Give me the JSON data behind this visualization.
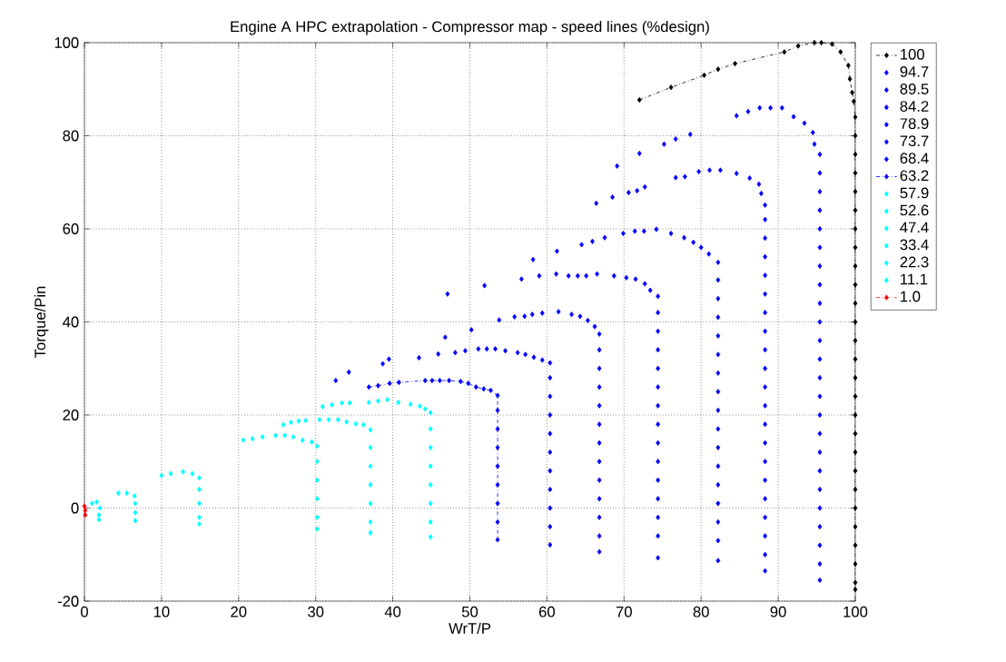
{
  "chart_data": {
    "type": "scatter",
    "title": "Engine A HPC extrapolation - Compressor map - speed lines (%design)",
    "xlabel": "WrT/P",
    "ylabel": "Torque/Pin",
    "xlim": [
      0,
      100
    ],
    "ylim": [
      -20,
      100
    ],
    "xticks": [
      0,
      10,
      20,
      30,
      40,
      50,
      60,
      70,
      80,
      90,
      100
    ],
    "yticks": [
      -20,
      0,
      20,
      40,
      60,
      80,
      100
    ],
    "grid": true,
    "legend": "right",
    "marker": "diamond",
    "series": [
      {
        "name": "100",
        "type": "line",
        "line_style": "dashdot",
        "color": "#000000",
        "x": [
          72.0,
          76.1,
          80.4,
          82.2,
          84.4,
          90.8,
          92.6,
          94.7,
          95.6,
          97.0,
          98.1,
          99.1,
          99.3,
          99.6,
          99.8,
          100,
          100,
          100,
          100,
          100,
          100,
          100,
          100,
          100,
          100,
          100,
          100,
          100,
          100,
          100,
          100,
          100,
          100,
          100,
          100,
          100,
          100,
          100,
          100,
          100,
          100,
          100
        ],
        "values": [
          87.7,
          90.4,
          93.0,
          94.3,
          95.5,
          98.0,
          99.3,
          100,
          100,
          99.7,
          98.0,
          95.1,
          92.2,
          89.3,
          87.4,
          84,
          80,
          76,
          72,
          68,
          64,
          60,
          56,
          52,
          48,
          44,
          40,
          36,
          32,
          28,
          24,
          20,
          16,
          12,
          8,
          4,
          0,
          -4,
          -8,
          -12,
          -16,
          -17.5
        ]
      },
      {
        "name": "94.7",
        "color": "#0000ff",
        "x": [
          69.1,
          72.0,
          75.2,
          76.7,
          78.6,
          84.6,
          86.1,
          87.6,
          89.0,
          90.5,
          92.0,
          93.4,
          94.5,
          94.7,
          95.4,
          95.4,
          95.4,
          95.4,
          95.4,
          95.4,
          95.4,
          95.4,
          95.4,
          95.4,
          95.4,
          95.4,
          95.4,
          95.4,
          95.4,
          95.4,
          95.4,
          95.4,
          95.4,
          95.4,
          95.4,
          95.4,
          95.4,
          95.4
        ],
        "values": [
          73.5,
          76.2,
          78.2,
          79.3,
          80.3,
          84.3,
          85.2,
          86.0,
          86.0,
          86.0,
          84.1,
          82.7,
          80.7,
          78.2,
          76,
          72,
          68,
          64,
          60,
          56,
          52,
          48,
          44,
          40,
          36,
          32,
          28,
          24,
          20,
          16,
          12,
          8,
          4,
          0,
          -4,
          -8,
          -12,
          -15.5
        ]
      },
      {
        "name": "89.5",
        "color": "#0000ff",
        "x": [
          66.4,
          68.5,
          70.6,
          71.7,
          72.7,
          76.7,
          77.9,
          79.7,
          81.1,
          82.5,
          84.6,
          86.3,
          87.5,
          87.8,
          88.3,
          88.3,
          88.3,
          88.3,
          88.3,
          88.3,
          88.3,
          88.3,
          88.3,
          88.3,
          88.3,
          88.3,
          88.3,
          88.3,
          88.3,
          88.3,
          88.3,
          88.3,
          88.3,
          88.3,
          88.3
        ],
        "values": [
          65.5,
          66.8,
          67.8,
          68.2,
          69.0,
          71.0,
          71.2,
          72.3,
          72.6,
          72.6,
          71.9,
          70.9,
          69.6,
          67.6,
          65.1,
          62,
          58,
          54,
          50,
          46,
          42,
          38,
          34,
          30,
          26,
          22,
          18,
          14,
          10,
          6,
          2,
          -2,
          -6,
          -10,
          -13.5
        ]
      },
      {
        "name": "84.2",
        "color": "#0000ff",
        "x": [
          58.2,
          61.3,
          64.5,
          65.9,
          67.5,
          69.9,
          71.4,
          72.6,
          74.2,
          76.1,
          77.8,
          79.0,
          80.0,
          81.0,
          82.2,
          82.2,
          82.2,
          82.2,
          82.2,
          82.2,
          82.2,
          82.2,
          82.2,
          82.2,
          82.2,
          82.2,
          82.2,
          82.2,
          82.2,
          82.2,
          82.2
        ],
        "values": [
          53.4,
          55.2,
          56.6,
          57.3,
          58.1,
          59.0,
          59.5,
          59.5,
          59.9,
          59.0,
          58.1,
          57.1,
          56.0,
          54.6,
          52.8,
          49,
          45,
          41,
          37,
          33,
          29,
          25,
          21,
          17,
          13,
          9,
          5,
          1,
          -3,
          -7,
          -11.3
        ]
      },
      {
        "name": "78.9",
        "color": "#0000ff",
        "x": [
          47.1,
          51.9,
          56.7,
          59.0,
          61.2,
          62.8,
          64.0,
          65.1,
          66.5,
          68.7,
          70.3,
          71.5,
          72.7,
          73.4,
          74.4,
          74.4,
          74.4,
          74.4,
          74.4,
          74.4,
          74.4,
          74.4,
          74.4,
          74.4,
          74.4,
          74.4,
          74.4,
          74.4,
          74.4
        ],
        "values": [
          46.0,
          47.8,
          49.2,
          49.9,
          50.3,
          49.9,
          49.9,
          49.9,
          50.3,
          49.9,
          49.5,
          49.2,
          48.2,
          46.8,
          45.5,
          42,
          38,
          34,
          30,
          26,
          22,
          18,
          14,
          10,
          6,
          2,
          -2,
          -6,
          -10.7
        ]
      },
      {
        "name": "73.7",
        "color": "#0000ff",
        "x": [
          46.8,
          50.2,
          53.8,
          55.8,
          57.1,
          58.1,
          59.4,
          61.5,
          63.2,
          64.3,
          65.3,
          66.2,
          66.8,
          66.8,
          66.8,
          66.8,
          66.8,
          66.8,
          66.8,
          66.8,
          66.8,
          66.8,
          66.8,
          66.8,
          66.8
        ],
        "values": [
          36.7,
          38.3,
          40.4,
          41.1,
          41.2,
          41.6,
          41.9,
          42.2,
          41.6,
          41.2,
          40.3,
          39.0,
          37.4,
          34,
          30,
          26,
          22,
          18,
          14,
          10,
          6,
          2,
          -2,
          -6,
          -9.4
        ]
      },
      {
        "name": "68.4",
        "color": "#0000ff",
        "x": [
          32.6,
          34.3,
          38.7,
          39.5,
          43.4,
          45.9,
          48.1,
          49.4,
          51.1,
          52.2,
          53.3,
          54.6,
          56.2,
          57.2,
          58.3,
          59.4,
          60.4,
          60.4,
          60.4,
          60.4,
          60.4,
          60.4,
          60.4,
          60.4,
          60.4,
          60.4,
          60.4
        ],
        "values": [
          27.4,
          29.2,
          31.0,
          32.0,
          32.3,
          33.1,
          33.4,
          33.8,
          34.2,
          34.2,
          34.2,
          33.8,
          33.4,
          33.0,
          32.4,
          31.8,
          31.2,
          28,
          24,
          20,
          16,
          12,
          8,
          4,
          0,
          -4,
          -7.9
        ]
      },
      {
        "name": "63.2",
        "type": "line",
        "line_style": "dashdot",
        "color": "#0000ff",
        "x": [
          36.9,
          38.1,
          39.6,
          40.8,
          44.2,
          45.1,
          46.1,
          47.3,
          48.8,
          49.8,
          50.8,
          51.8,
          52.7,
          53.6,
          53.6,
          53.6,
          53.6,
          53.6,
          53.6,
          53.6,
          53.6,
          53.6
        ],
        "values": [
          26.0,
          26.3,
          26.8,
          27.0,
          27.4,
          27.4,
          27.4,
          27.4,
          27.2,
          26.8,
          26.0,
          25.6,
          25.3,
          24.2,
          21,
          17,
          13,
          9,
          5,
          1,
          -3,
          -6.8
        ]
      },
      {
        "name": "57.9",
        "color": "#00ffff",
        "x": [
          30.9,
          32.1,
          33.4,
          34.4,
          36.9,
          38.1,
          39.3,
          40.7,
          42.3,
          43.5,
          44.2,
          44.9,
          44.9,
          44.9,
          44.9,
          44.9,
          44.9,
          44.9,
          44.9
        ],
        "values": [
          21.8,
          22.2,
          22.6,
          22.6,
          22.7,
          23.0,
          23.3,
          22.7,
          22.3,
          21.9,
          21.3,
          20.5,
          17,
          13,
          9,
          5,
          1,
          -3,
          -6.2
        ]
      },
      {
        "name": "52.6",
        "color": "#00ffff",
        "x": [
          25.8,
          26.8,
          27.8,
          28.7,
          30.5,
          31.7,
          32.9,
          34.0,
          35.2,
          36.2,
          37.1,
          37.1,
          37.1,
          37.1,
          37.1,
          37.1,
          37.1
        ],
        "values": [
          17.9,
          18.4,
          18.7,
          18.8,
          19.0,
          19.0,
          19.0,
          18.5,
          18.1,
          17.9,
          16.8,
          13,
          9,
          5,
          1,
          -3,
          -5.3
        ]
      },
      {
        "name": "47.4",
        "color": "#00ffff",
        "x": [
          20.6,
          21.8,
          23.1,
          24.8,
          26.0,
          27.1,
          28.3,
          29.5,
          30.2,
          30.2,
          30.2,
          30.2,
          30.2,
          30.2
        ],
        "values": [
          14.6,
          14.9,
          15.3,
          15.6,
          15.6,
          15.3,
          14.6,
          14.2,
          13.3,
          10,
          6,
          2,
          -2,
          -4.5
        ]
      },
      {
        "name": "33.4",
        "color": "#00ffff",
        "x": [
          10.0,
          11.2,
          12.8,
          14.0,
          14.9,
          14.9,
          14.9,
          14.9,
          14.9
        ],
        "values": [
          7.0,
          7.4,
          7.8,
          7.4,
          6.5,
          4,
          1,
          -2,
          -3.4
        ]
      },
      {
        "name": "22.3",
        "color": "#00ffff",
        "x": [
          4.4,
          5.5,
          6.5,
          6.6,
          6.6,
          6.6
        ],
        "values": [
          3.2,
          3.2,
          2.6,
          1,
          -1,
          -2.7
        ]
      },
      {
        "name": "11.1",
        "color": "#00ffff",
        "x": [
          1.0,
          1.6,
          2.0,
          1.9,
          1.9
        ],
        "values": [
          1.0,
          1.3,
          0,
          -1.5,
          -2.5
        ]
      },
      {
        "name": "1.0",
        "type": "line",
        "line_style": "dashdot",
        "color": "#ff0000",
        "x": [
          0,
          0.1,
          0.1
        ],
        "values": [
          0.4,
          -0.5,
          -1.5
        ]
      }
    ]
  }
}
